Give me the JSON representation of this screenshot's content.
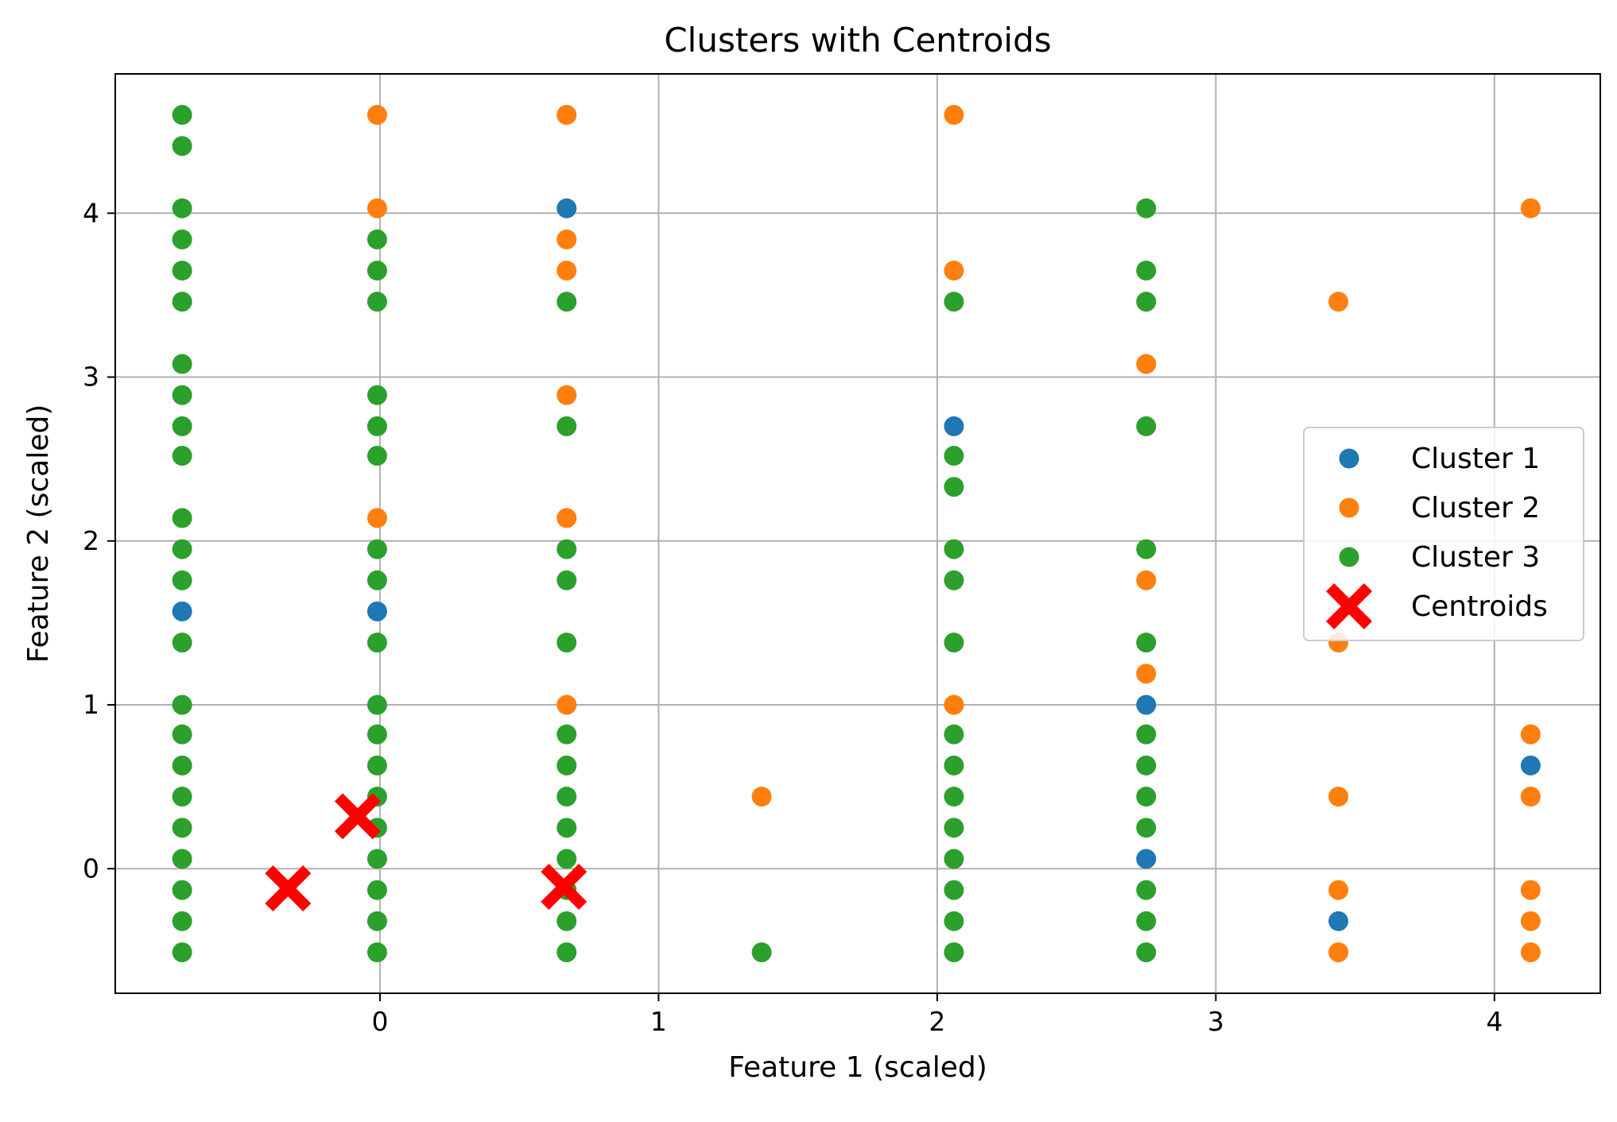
{
  "chart_data": {
    "type": "scatter",
    "title": "Clusters with Centroids",
    "xlabel": "Feature 1 (scaled)",
    "ylabel": "Feature 2 (scaled)",
    "xlim": [
      -0.95,
      4.38
    ],
    "ylim": [
      -0.76,
      4.85
    ],
    "xticks": [
      0,
      1,
      2,
      3,
      4
    ],
    "yticks": [
      0,
      1,
      2,
      3,
      4
    ],
    "grid": true,
    "legend_position": "center-right",
    "series": [
      {
        "name": "Cluster 1",
        "color": "#1f77b4",
        "marker": "circle",
        "points": [
          [
            0.67,
            4.03
          ],
          [
            -0.71,
            1.57
          ],
          [
            -0.01,
            1.57
          ],
          [
            2.06,
            2.7
          ],
          [
            2.75,
            1.0
          ],
          [
            2.75,
            0.06
          ],
          [
            3.44,
            -0.32
          ],
          [
            4.13,
            0.63
          ]
        ]
      },
      {
        "name": "Cluster 2",
        "color": "#ff7f0e",
        "marker": "circle",
        "points": [
          [
            -0.01,
            4.6
          ],
          [
            -0.01,
            4.03
          ],
          [
            -0.01,
            2.14
          ],
          [
            0.67,
            4.6
          ],
          [
            0.67,
            3.84
          ],
          [
            0.67,
            3.65
          ],
          [
            0.67,
            2.89
          ],
          [
            0.67,
            2.14
          ],
          [
            0.67,
            1.0
          ],
          [
            1.37,
            0.44
          ],
          [
            2.06,
            4.6
          ],
          [
            2.06,
            3.65
          ],
          [
            2.06,
            1.0
          ],
          [
            2.75,
            3.08
          ],
          [
            2.75,
            1.76
          ],
          [
            2.75,
            1.19
          ],
          [
            3.44,
            3.46
          ],
          [
            3.44,
            1.38
          ],
          [
            3.44,
            0.44
          ],
          [
            3.44,
            -0.13
          ],
          [
            3.44,
            -0.51
          ],
          [
            4.13,
            4.03
          ],
          [
            4.13,
            0.82
          ],
          [
            4.13,
            0.44
          ],
          [
            4.13,
            -0.13
          ],
          [
            4.13,
            -0.32
          ],
          [
            4.13,
            -0.51
          ]
        ]
      },
      {
        "name": "Cluster 3",
        "color": "#2ca02c",
        "marker": "circle",
        "points": [
          [
            -0.71,
            4.6
          ],
          [
            -0.71,
            4.41
          ],
          [
            -0.71,
            4.03
          ],
          [
            -0.71,
            3.84
          ],
          [
            -0.71,
            3.65
          ],
          [
            -0.71,
            3.46
          ],
          [
            -0.71,
            3.08
          ],
          [
            -0.71,
            2.89
          ],
          [
            -0.71,
            2.7
          ],
          [
            -0.71,
            2.52
          ],
          [
            -0.71,
            2.14
          ],
          [
            -0.71,
            1.95
          ],
          [
            -0.71,
            1.76
          ],
          [
            -0.71,
            1.38
          ],
          [
            -0.71,
            1.0
          ],
          [
            -0.71,
            0.82
          ],
          [
            -0.71,
            0.63
          ],
          [
            -0.71,
            0.44
          ],
          [
            -0.71,
            0.25
          ],
          [
            -0.71,
            0.06
          ],
          [
            -0.71,
            -0.13
          ],
          [
            -0.71,
            -0.32
          ],
          [
            -0.71,
            -0.51
          ],
          [
            -0.01,
            3.84
          ],
          [
            -0.01,
            3.65
          ],
          [
            -0.01,
            3.46
          ],
          [
            -0.01,
            2.89
          ],
          [
            -0.01,
            2.7
          ],
          [
            -0.01,
            2.52
          ],
          [
            -0.01,
            1.95
          ],
          [
            -0.01,
            1.76
          ],
          [
            -0.01,
            1.38
          ],
          [
            -0.01,
            1.0
          ],
          [
            -0.01,
            0.82
          ],
          [
            -0.01,
            0.63
          ],
          [
            -0.01,
            0.44
          ],
          [
            -0.01,
            0.25
          ],
          [
            -0.01,
            0.06
          ],
          [
            -0.01,
            -0.13
          ],
          [
            -0.01,
            -0.32
          ],
          [
            -0.01,
            -0.51
          ],
          [
            0.67,
            3.46
          ],
          [
            0.67,
            2.7
          ],
          [
            0.67,
            1.95
          ],
          [
            0.67,
            1.76
          ],
          [
            0.67,
            1.38
          ],
          [
            0.67,
            0.82
          ],
          [
            0.67,
            0.63
          ],
          [
            0.67,
            0.44
          ],
          [
            0.67,
            0.25
          ],
          [
            0.67,
            0.06
          ],
          [
            0.67,
            -0.13
          ],
          [
            0.67,
            -0.32
          ],
          [
            0.67,
            -0.51
          ],
          [
            1.37,
            -0.51
          ],
          [
            2.06,
            3.46
          ],
          [
            2.06,
            2.52
          ],
          [
            2.06,
            2.33
          ],
          [
            2.06,
            1.95
          ],
          [
            2.06,
            1.76
          ],
          [
            2.06,
            1.38
          ],
          [
            2.06,
            0.82
          ],
          [
            2.06,
            0.63
          ],
          [
            2.06,
            0.44
          ],
          [
            2.06,
            0.25
          ],
          [
            2.06,
            0.06
          ],
          [
            2.06,
            -0.13
          ],
          [
            2.06,
            -0.32
          ],
          [
            2.06,
            -0.51
          ],
          [
            2.75,
            4.03
          ],
          [
            2.75,
            3.65
          ],
          [
            2.75,
            3.46
          ],
          [
            2.75,
            2.7
          ],
          [
            2.75,
            1.95
          ],
          [
            2.75,
            1.38
          ],
          [
            2.75,
            0.82
          ],
          [
            2.75,
            0.63
          ],
          [
            2.75,
            0.44
          ],
          [
            2.75,
            0.25
          ],
          [
            2.75,
            -0.13
          ],
          [
            2.75,
            -0.32
          ],
          [
            2.75,
            -0.51
          ]
        ]
      },
      {
        "name": "Centroids",
        "color": "#ff0000",
        "marker": "X",
        "points": [
          [
            -0.08,
            0.32
          ],
          [
            -0.33,
            -0.12
          ],
          [
            0.66,
            -0.11
          ]
        ]
      }
    ]
  }
}
